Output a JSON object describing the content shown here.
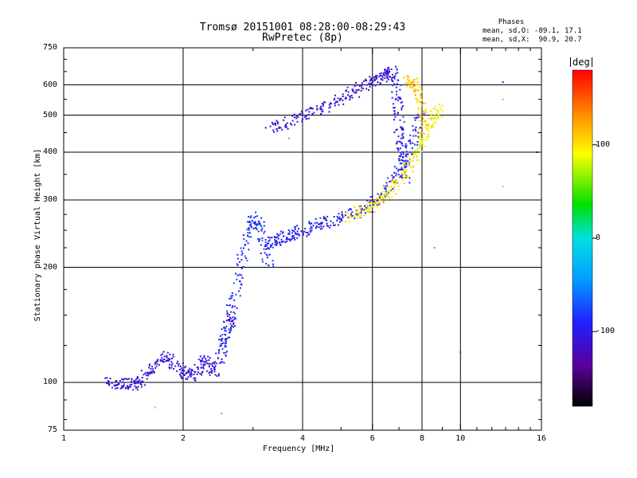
{
  "header": {
    "title_line1": "Tromsø 20151001 08:28:00-08:29:43",
    "title_line2": "RwPretec (8p)"
  },
  "phase_box": {
    "heading": "Phases",
    "line_o": "mean, sd,O: -89.1, 17.1",
    "line_x": "mean, sd,X:  90.9, 20.7"
  },
  "colorbar": {
    "unit": "deg",
    "tick_labels": [
      "100",
      "0",
      "-100"
    ],
    "ticks": [
      100,
      0,
      -100
    ],
    "range": [
      -180,
      180
    ],
    "scale": "rainbow: black(-180) → purple → blue → cyan → green → yellow → orange → red(180)"
  },
  "chart_data": {
    "type": "scatter",
    "title": "Tromsø 20151001 08:28:00-08:29:43",
    "subtitle": "RwPretec (8p)",
    "xlabel": "Frequency [MHz]",
    "ylabel": "Stationary phase Virtual Height [km]",
    "x_scale": "log",
    "y_scale": "log",
    "xlim": [
      1,
      16
    ],
    "ylim": [
      75,
      750
    ],
    "x_tick_labels": [
      "1",
      "2",
      "4",
      "6",
      "8",
      "10",
      "16"
    ],
    "x_ticks": [
      1,
      2,
      4,
      6,
      8,
      10,
      16
    ],
    "y_tick_labels": [
      "75",
      "100",
      "200",
      "300",
      "400",
      "500",
      "600",
      "750"
    ],
    "y_ticks": [
      75,
      100,
      200,
      300,
      400,
      500,
      600,
      750
    ],
    "grid_x": [
      2,
      4,
      6,
      8,
      10
    ],
    "grid_y": [
      100,
      200,
      300,
      400,
      500,
      600
    ],
    "grid": true,
    "color_value": "phase [deg]",
    "series": [
      {
        "segments": [
          {
            "x": [
              1.3,
              1.37,
              1.45,
              1.52,
              1.6,
              1.7,
              1.8,
              1.9,
              2.0,
              2.1,
              2.2,
              2.3,
              2.4,
              2.5,
              2.6,
              2.7
            ],
            "y": [
              100,
              99,
              100,
              98,
              104,
              110,
              118,
              112,
              106,
              104,
              110,
              116,
              104,
              120,
              140,
              150
            ],
            "phase": -105
          },
          {
            "x": [
              2.5,
              2.6,
              2.7,
              2.8,
              2.9,
              3.0,
              3.1,
              3.2,
              3.3
            ],
            "y": [
              120,
              140,
              170,
              200,
              240,
              270,
              260,
              230,
              200
            ],
            "phase": -85
          },
          {
            "x": [
              3.3,
              3.4,
              3.6,
              3.8,
              4.0,
              4.3,
              4.6,
              5.0,
              5.5,
              6.0,
              6.4,
              6.8,
              7.2,
              7.6,
              8.0
            ],
            "y": [
              230,
              235,
              240,
              245,
              250,
              256,
              262,
              268,
              278,
              290,
              310,
              340,
              380,
              430,
              500
            ],
            "phase": -95
          },
          {
            "x": [
              3.3,
              3.6,
              4.0,
              4.4,
              4.8,
              5.2,
              5.6,
              6.0,
              6.3,
              6.6,
              6.8
            ],
            "y": [
              460,
              475,
              495,
              515,
              540,
              565,
              590,
              610,
              625,
              640,
              650
            ],
            "phase": -110
          },
          {
            "x": [
              6.8,
              6.9,
              7.0,
              7.1,
              7.2,
              7.3
            ],
            "y": [
              640,
              560,
              480,
              420,
              380,
              340
            ],
            "phase": -100
          },
          {
            "x": [
              5.2,
              5.6,
              6.0,
              6.4,
              6.8,
              7.2,
              7.6,
              8.0,
              8.3,
              8.6,
              8.9
            ],
            "y": [
              270,
              280,
              290,
              305,
              325,
              350,
              380,
              420,
              460,
              500,
              520
            ],
            "phase": 95
          },
          {
            "x": [
              7.4,
              7.6,
              7.8,
              8.0,
              8.1
            ],
            "y": [
              620,
              610,
              580,
              520,
              450
            ],
            "phase": 110
          }
        ]
      }
    ],
    "outliers": [
      {
        "x": 10.0,
        "y": 120,
        "phase": 178
      },
      {
        "x": 12.8,
        "y": 610,
        "phase": -100
      },
      {
        "x": 12.8,
        "y": 550,
        "phase": 120
      },
      {
        "x": 12.8,
        "y": 325,
        "phase": 115
      },
      {
        "x": 15.6,
        "y": 400,
        "phase": -100
      },
      {
        "x": 8.6,
        "y": 225,
        "phase": 140
      },
      {
        "x": 3.7,
        "y": 435,
        "phase": 140
      },
      {
        "x": 1.7,
        "y": 86,
        "phase": 120
      },
      {
        "x": 2.5,
        "y": 83,
        "phase": 140
      }
    ]
  }
}
